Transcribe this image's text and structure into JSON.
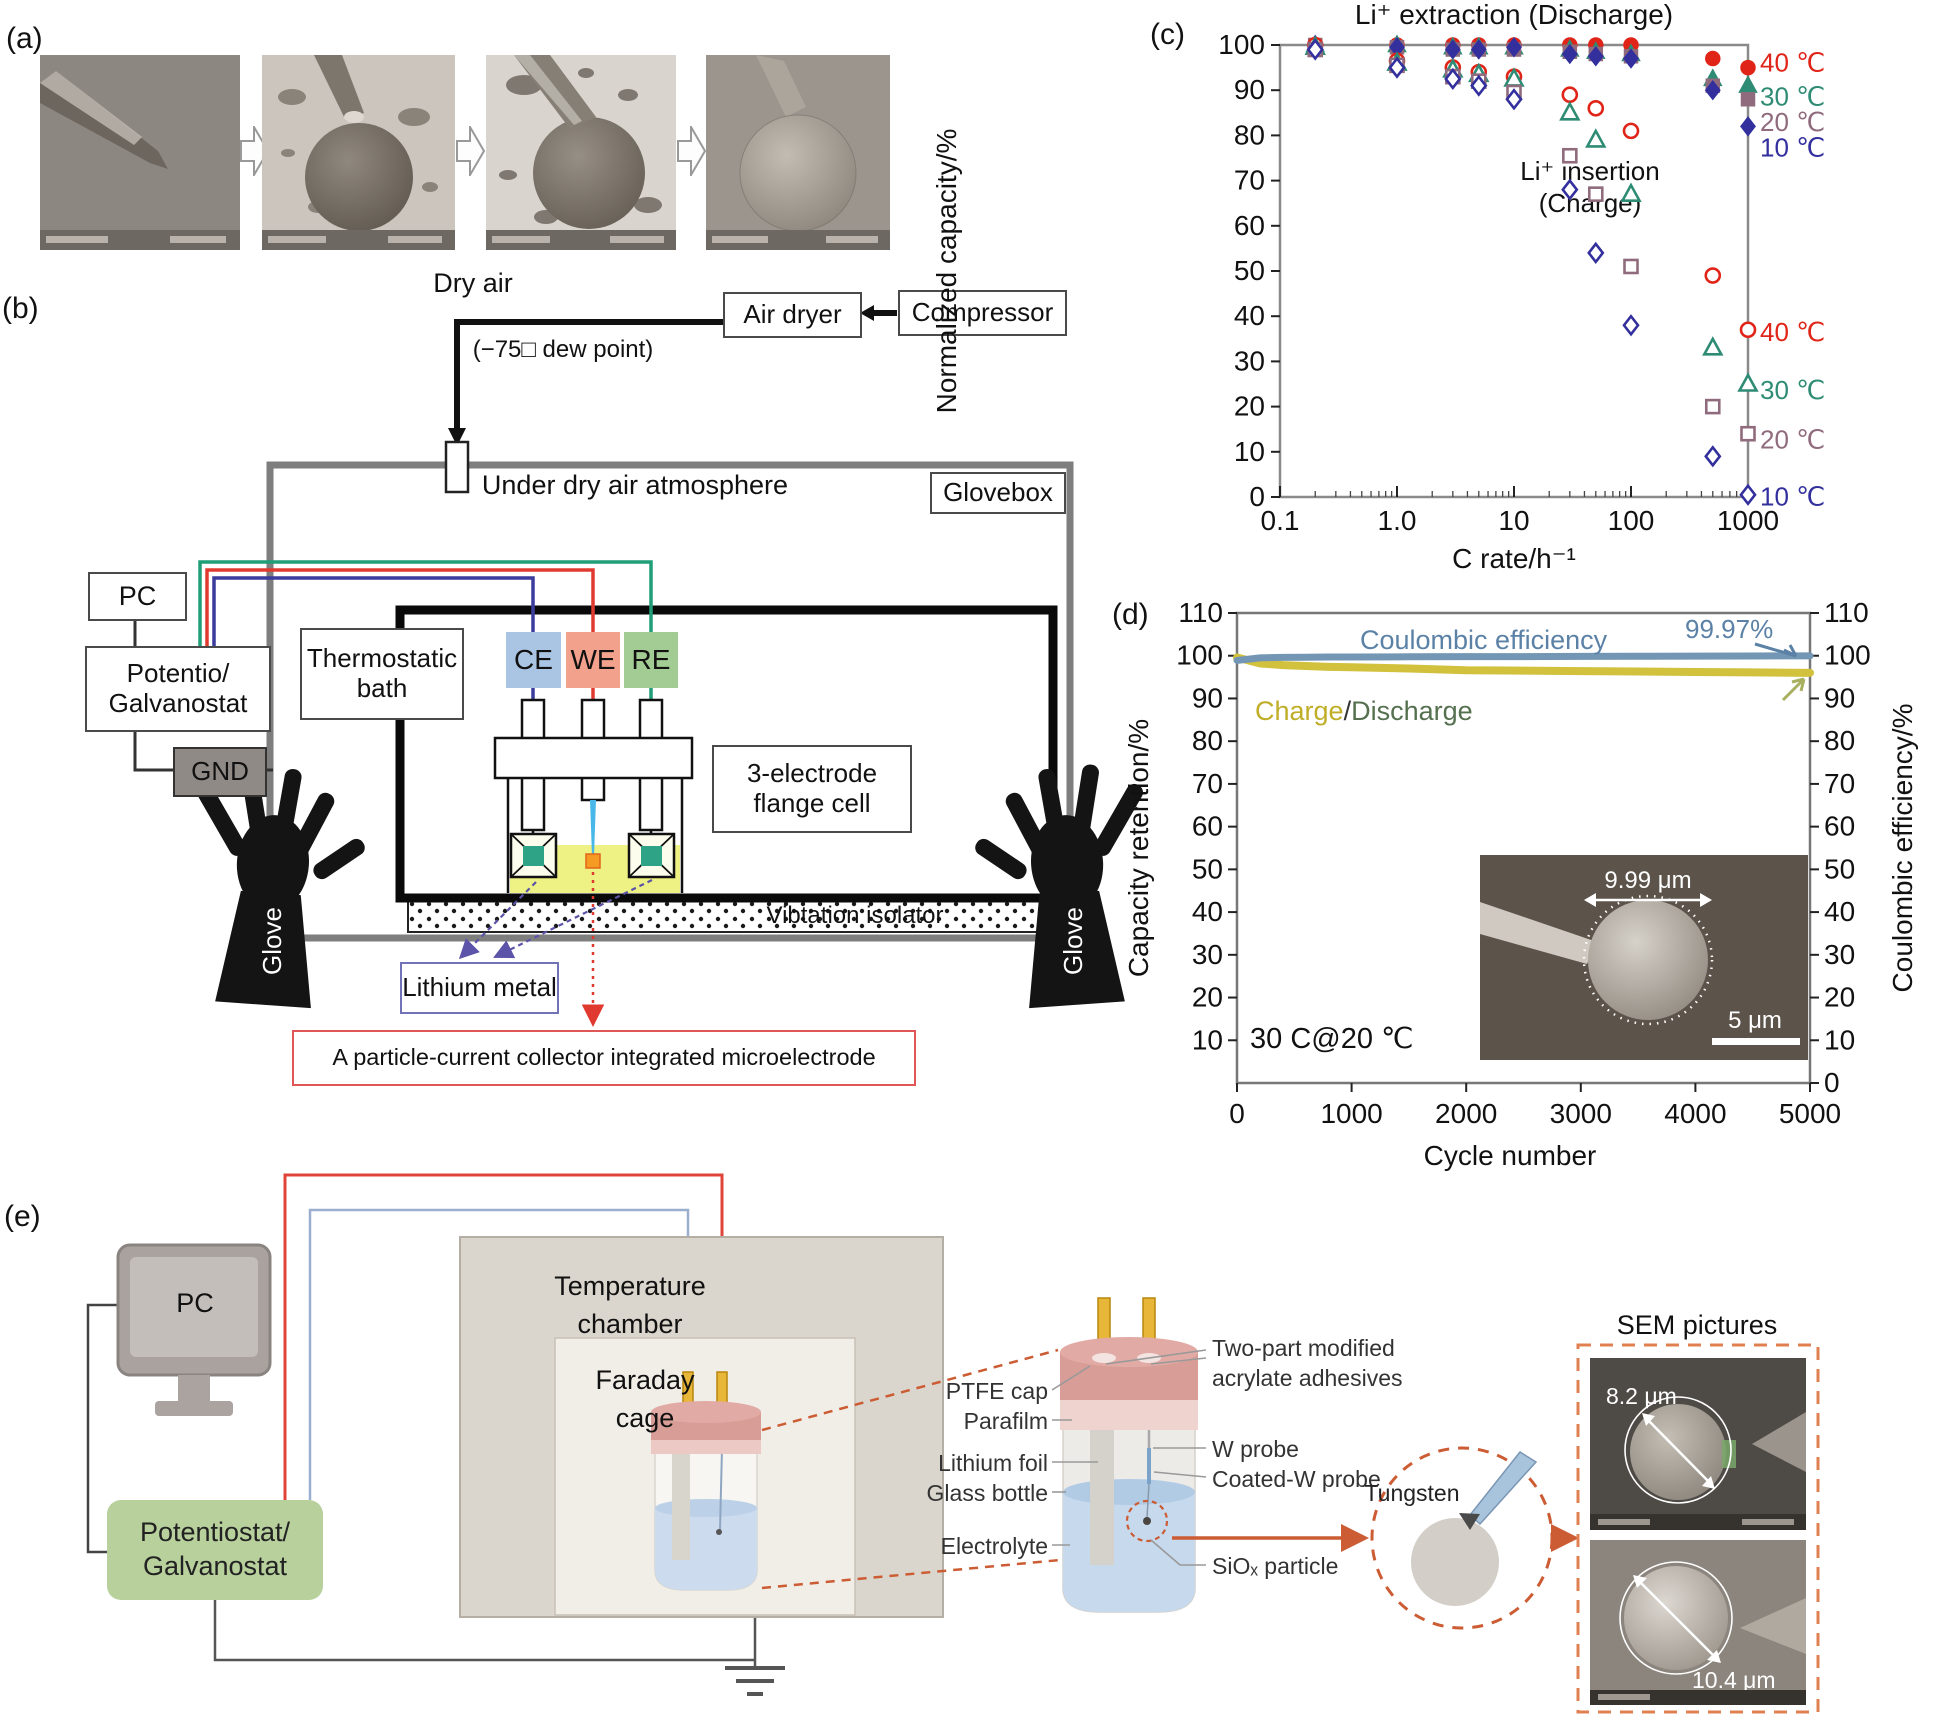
{
  "panels": {
    "a": {
      "label": "(a)"
    },
    "b": {
      "label": "(b)",
      "dry_air": "Dry air",
      "dew_point": "(−75□ dew point)",
      "air_dryer": "Air dryer",
      "compressor": "Compressor",
      "glovebox": "Glovebox",
      "atmosphere": "Under dry air atmosphere",
      "bath1": "Thermostatic",
      "bath2": "bath",
      "ce": "CE",
      "we": "WE",
      "re": "RE",
      "cell1": "3-electrode",
      "cell2": "flange cell",
      "isolator": "Vibtation isolator",
      "glove": "Glove",
      "pc": "PC",
      "potentio1": "Potentio/",
      "potentio2": "Galvanostat",
      "gnd": "GND",
      "lithium": "Lithium metal",
      "micro": "A particle-current collector integrated microelectrode"
    },
    "c": {
      "label": "(c)"
    },
    "d": {
      "label": "(d)"
    },
    "e": {
      "label": "(e)",
      "pc": "PC",
      "potentiostat1": "Potentiostat/",
      "potentiostat2": "Galvanostat",
      "chamber1": "Temperature",
      "chamber2": "chamber",
      "faraday1": "Faraday",
      "faraday2": "cage",
      "ptfe": "PTFE cap",
      "parafilm": "Parafilm",
      "lithium_foil": "Lithium foil",
      "glass": "Glass bottle",
      "electrolyte": "Electrolyte",
      "adhesive1": "Two-part modified",
      "adhesive2": "acrylate adhesives",
      "w_probe": "W probe",
      "coated": "Coated-W probe",
      "siox": "SiOₓ particle",
      "tungsten": "Tungsten",
      "sem_title": "SEM pictures",
      "sem1": "8.2 μm",
      "sem2": "10.4 μm"
    }
  },
  "chart_data": [
    {
      "type": "scatter",
      "title": "Li⁺ extraction (Discharge)",
      "xlabel": "C rate/h⁻¹",
      "ylabel": "Normalized capacity/%",
      "xscale": "log",
      "xlim": [
        0.1,
        1000
      ],
      "ylim": [
        0,
        100
      ],
      "yticks": [
        0,
        10,
        20,
        30,
        40,
        50,
        60,
        70,
        80,
        90,
        100
      ],
      "xticks": [
        {
          "v": 0.1,
          "label": "0.1"
        },
        {
          "v": 1,
          "label": "1.0"
        },
        {
          "v": 10,
          "label": "10"
        },
        {
          "v": 100,
          "label": "100"
        },
        {
          "v": 1000,
          "label": "1000"
        }
      ],
      "annotation": [
        "Li⁺ insertion",
        "(Charge)"
      ],
      "x": [
        0.2,
        1,
        3,
        5,
        10,
        30,
        50,
        100,
        500,
        1000
      ],
      "series": [
        {
          "group": "discharge",
          "label": "40 ℃",
          "marker": "circle",
          "fill": "filled",
          "color": "#e02418",
          "values": [
            100,
            100,
            100,
            100,
            100,
            100,
            100,
            100,
            97,
            95
          ]
        },
        {
          "group": "discharge",
          "label": "30 ℃",
          "marker": "triangle",
          "fill": "filled",
          "color": "#2e8b74",
          "values": [
            100,
            100,
            99.5,
            99.5,
            99.5,
            99,
            98.5,
            98,
            92.5,
            91
          ]
        },
        {
          "group": "discharge",
          "label": "20 ℃",
          "marker": "square",
          "fill": "filled",
          "color": "#8f6b7d",
          "values": [
            100,
            99.5,
            99,
            99,
            99,
            98.5,
            98,
            97.5,
            91,
            88
          ]
        },
        {
          "group": "discharge",
          "label": "10 ℃",
          "marker": "diamond",
          "fill": "filled",
          "color": "#33309e",
          "values": [
            100,
            99.5,
            99,
            99,
            99.5,
            98,
            97.5,
            97,
            90,
            82
          ]
        },
        {
          "group": "charge",
          "label": "40 ℃",
          "marker": "circle",
          "fill": "open",
          "color": "#e02418",
          "values": [
            100,
            96.5,
            95,
            94,
            93,
            89,
            86,
            81,
            49,
            37
          ]
        },
        {
          "group": "charge",
          "label": "30 ℃",
          "marker": "triangle",
          "fill": "open",
          "color": "#2e8b74",
          "values": [
            99.5,
            96,
            94.5,
            93.5,
            92.5,
            85,
            79,
            67,
            33,
            25
          ]
        },
        {
          "group": "charge",
          "label": "20 ℃",
          "marker": "square",
          "fill": "open",
          "color": "#8f6b7d",
          "values": [
            99,
            95.5,
            93,
            92,
            89.5,
            75.5,
            67,
            51,
            20,
            14
          ]
        },
        {
          "group": "charge",
          "label": "10 ℃",
          "marker": "diamond",
          "fill": "open",
          "color": "#33309e",
          "values": [
            99,
            95,
            92.5,
            91,
            88,
            68,
            54,
            38,
            9,
            0.5
          ]
        }
      ]
    },
    {
      "type": "line",
      "xlabel": "Cycle number",
      "ylabel_left": "Capacity retention/%",
      "ylabel_right": "Coulombic efficiency/%",
      "xlim": [
        0,
        5000
      ],
      "ylim": [
        0,
        110
      ],
      "xticks": [
        0,
        1000,
        2000,
        3000,
        4000,
        5000
      ],
      "yticks_left": [
        10,
        20,
        30,
        40,
        50,
        60,
        70,
        80,
        90,
        100,
        110
      ],
      "yticks_right": [
        0,
        10,
        20,
        30,
        40,
        50,
        60,
        70,
        80,
        90,
        100,
        110
      ],
      "condition": "30 C@20 ℃",
      "charge_discharge_separator": "/",
      "cycles": [
        0,
        200,
        400,
        600,
        800,
        1000,
        1500,
        2000,
        2500,
        3000,
        3500,
        4000,
        4500,
        5000
      ],
      "series": [
        {
          "name": "Discharge",
          "color": "#55704f",
          "width": 3.5,
          "values": [
            99.3,
            97.9,
            97.5,
            97.3,
            97.1,
            97.0,
            96.7,
            96.3,
            96.2,
            96.1,
            96.0,
            95.9,
            95.8,
            95.7
          ]
        },
        {
          "name": "Charge",
          "color": "#d2c13d",
          "width": 8,
          "values": [
            99.6,
            98.2,
            97.8,
            97.6,
            97.4,
            97.3,
            97.0,
            96.6,
            96.5,
            96.4,
            96.3,
            96.2,
            96.1,
            96.0
          ]
        },
        {
          "name": "Coulombic efficiency",
          "color": "#7396b4",
          "width": 7,
          "final_label": "99.97%",
          "values": [
            98.9,
            99.5,
            99.6,
            99.65,
            99.7,
            99.7,
            99.75,
            99.78,
            99.8,
            99.85,
            99.88,
            99.9,
            99.95,
            99.97
          ]
        }
      ],
      "inset": {
        "diameter": "9.99 μm",
        "scalebar": "5 μm"
      }
    }
  ]
}
